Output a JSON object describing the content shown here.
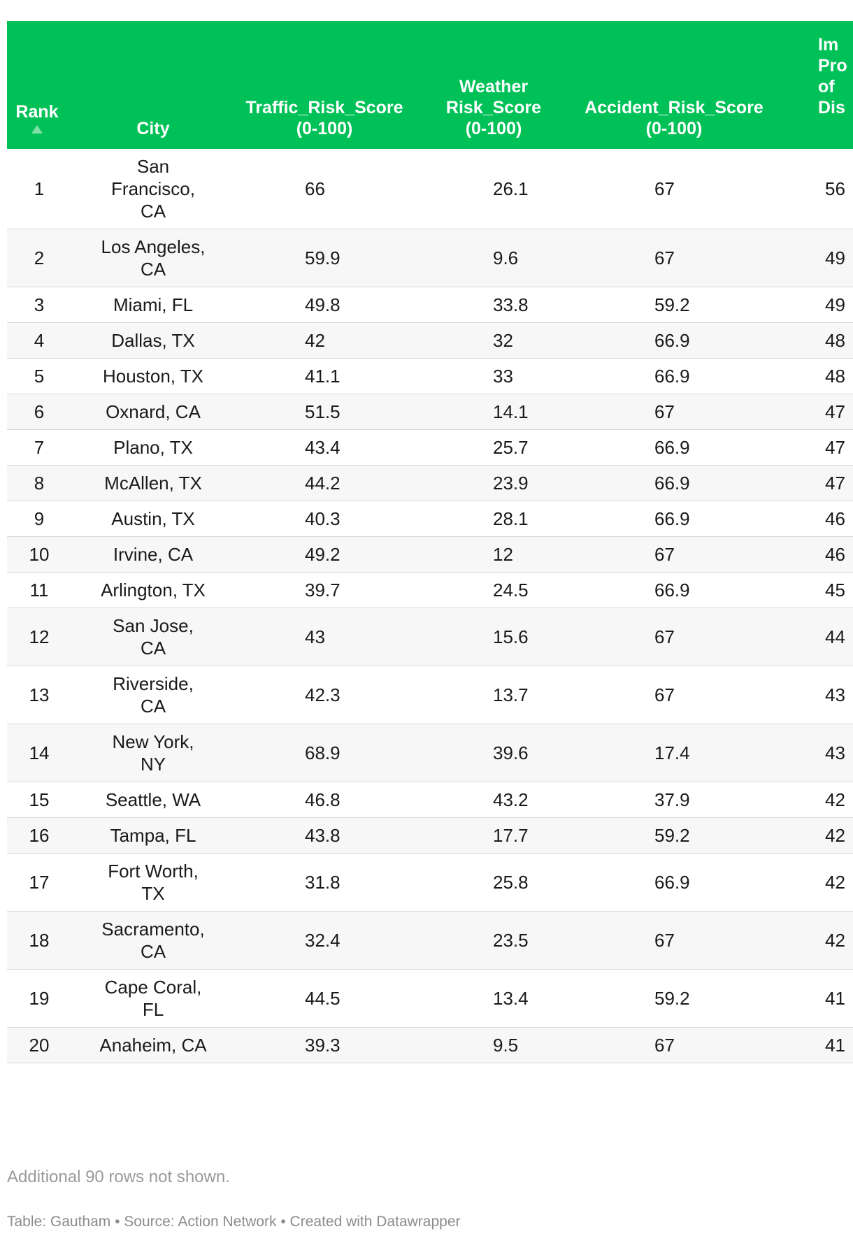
{
  "table": {
    "headers": {
      "rank": "Rank",
      "city": "City",
      "traffic": [
        "Traffic_Risk_Score",
        "(0-100)"
      ],
      "weather": [
        "Weather",
        "Risk_Score",
        "(0-100)"
      ],
      "accident": [
        "Accident_Risk_Score",
        "(0-100)"
      ],
      "extra": [
        "Im",
        "Pro",
        "of",
        "Dis"
      ]
    },
    "sort_indicator": "ascending",
    "rows": [
      {
        "rank": "1",
        "city": "San Francisco, CA",
        "traffic": "66",
        "weather": "26.1",
        "accident": "67",
        "extra": "56"
      },
      {
        "rank": "2",
        "city": "Los Angeles, CA",
        "traffic": "59.9",
        "weather": "9.6",
        "accident": "67",
        "extra": "49"
      },
      {
        "rank": "3",
        "city": "Miami, FL",
        "traffic": "49.8",
        "weather": "33.8",
        "accident": "59.2",
        "extra": "49"
      },
      {
        "rank": "4",
        "city": "Dallas, TX",
        "traffic": "42",
        "weather": "32",
        "accident": "66.9",
        "extra": "48"
      },
      {
        "rank": "5",
        "city": "Houston, TX",
        "traffic": "41.1",
        "weather": "33",
        "accident": "66.9",
        "extra": "48"
      },
      {
        "rank": "6",
        "city": "Oxnard, CA",
        "traffic": "51.5",
        "weather": "14.1",
        "accident": "67",
        "extra": "47"
      },
      {
        "rank": "7",
        "city": "Plano, TX",
        "traffic": "43.4",
        "weather": "25.7",
        "accident": "66.9",
        "extra": "47"
      },
      {
        "rank": "8",
        "city": "McAllen, TX",
        "traffic": "44.2",
        "weather": "23.9",
        "accident": "66.9",
        "extra": "47"
      },
      {
        "rank": "9",
        "city": "Austin, TX",
        "traffic": "40.3",
        "weather": "28.1",
        "accident": "66.9",
        "extra": "46"
      },
      {
        "rank": "10",
        "city": "Irvine, CA",
        "traffic": "49.2",
        "weather": "12",
        "accident": "67",
        "extra": "46"
      },
      {
        "rank": "11",
        "city": "Arlington, TX",
        "traffic": "39.7",
        "weather": "24.5",
        "accident": "66.9",
        "extra": "45"
      },
      {
        "rank": "12",
        "city": "San Jose, CA",
        "traffic": "43",
        "weather": "15.6",
        "accident": "67",
        "extra": "44"
      },
      {
        "rank": "13",
        "city": "Riverside, CA",
        "traffic": "42.3",
        "weather": "13.7",
        "accident": "67",
        "extra": "43"
      },
      {
        "rank": "14",
        "city": "New York, NY",
        "traffic": "68.9",
        "weather": "39.6",
        "accident": "17.4",
        "extra": "43"
      },
      {
        "rank": "15",
        "city": "Seattle, WA",
        "traffic": "46.8",
        "weather": "43.2",
        "accident": "37.9",
        "extra": "42"
      },
      {
        "rank": "16",
        "city": "Tampa, FL",
        "traffic": "43.8",
        "weather": "17.7",
        "accident": "59.2",
        "extra": "42"
      },
      {
        "rank": "17",
        "city": "Fort Worth, TX",
        "traffic": "31.8",
        "weather": "25.8",
        "accident": "66.9",
        "extra": "42"
      },
      {
        "rank": "18",
        "city": "Sacramento, CA",
        "traffic": "32.4",
        "weather": "23.5",
        "accident": "67",
        "extra": "42"
      },
      {
        "rank": "19",
        "city": "Cape Coral, FL",
        "traffic": "44.5",
        "weather": "13.4",
        "accident": "59.2",
        "extra": "41"
      },
      {
        "rank": "20",
        "city": "Anaheim, CA",
        "traffic": "39.3",
        "weather": "9.5",
        "accident": "67",
        "extra": "41"
      }
    ],
    "rows_note": "Additional 90 rows not shown."
  },
  "footer": {
    "text": "Table: Gautham • Source: Action Network • Created with Datawrapper"
  },
  "colors": {
    "header_bg": "#00c157",
    "header_text": "#ffffff",
    "stripe_bg": "#f7f7f7",
    "muted_text": "#9a9a9a"
  }
}
